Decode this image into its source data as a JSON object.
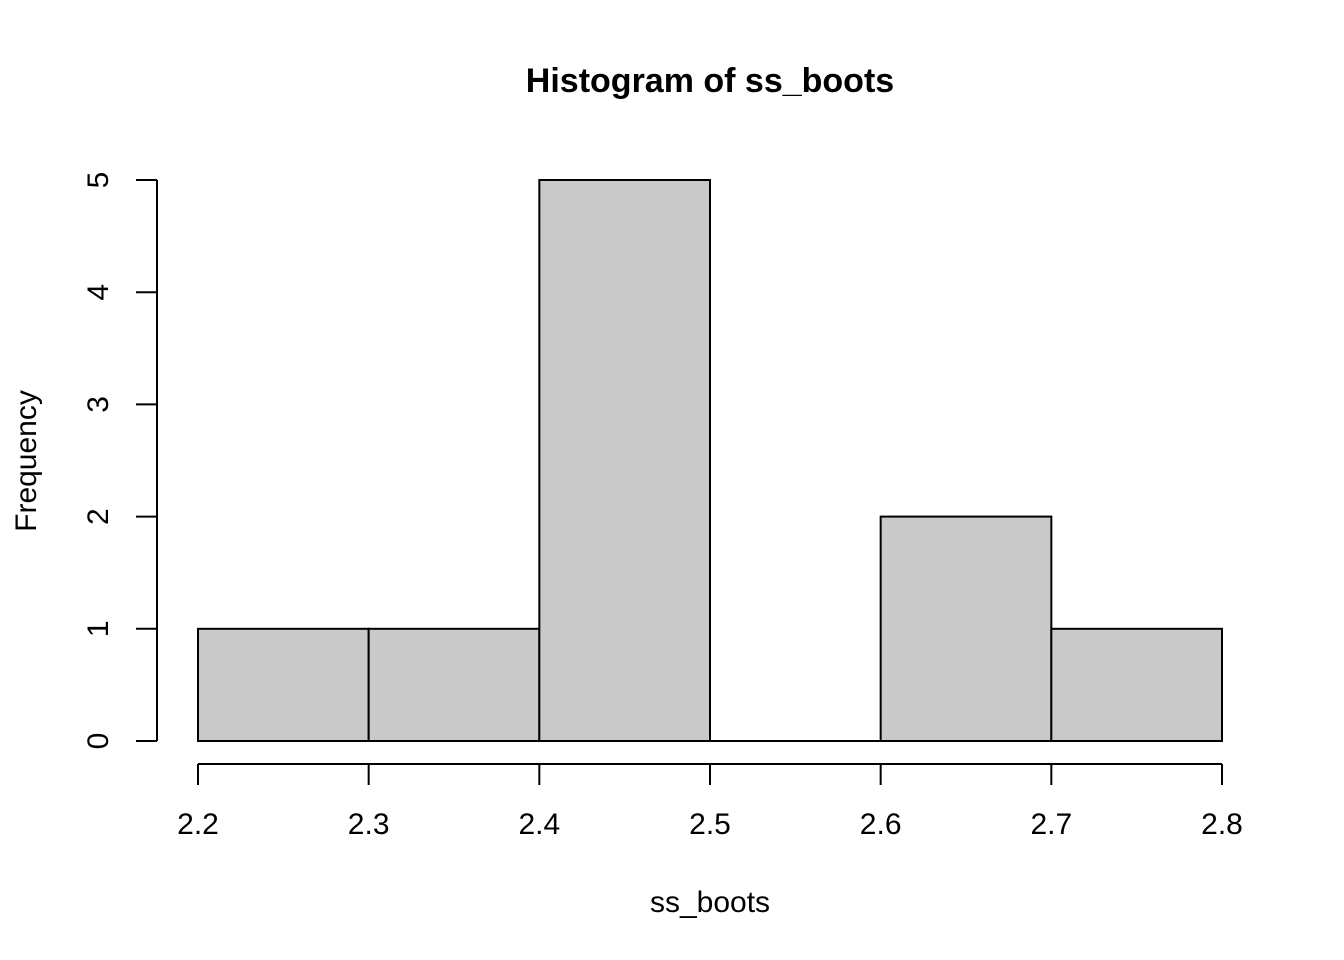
{
  "chart_data": {
    "type": "bar",
    "subtype": "histogram",
    "title": "Histogram of ss_boots",
    "xlabel": "ss_boots",
    "ylabel": "Frequency",
    "bins": [
      {
        "start": 2.2,
        "end": 2.3,
        "count": 1
      },
      {
        "start": 2.3,
        "end": 2.4,
        "count": 1
      },
      {
        "start": 2.4,
        "end": 2.5,
        "count": 5
      },
      {
        "start": 2.5,
        "end": 2.6,
        "count": 0
      },
      {
        "start": 2.6,
        "end": 2.7,
        "count": 2
      },
      {
        "start": 2.7,
        "end": 2.8,
        "count": 1
      }
    ],
    "xlim": [
      2.2,
      2.8
    ],
    "ylim": [
      0,
      5
    ],
    "x_ticks": [
      "2.2",
      "2.3",
      "2.4",
      "2.5",
      "2.6",
      "2.7",
      "2.8"
    ],
    "y_ticks": [
      "0",
      "1",
      "2",
      "3",
      "4",
      "5"
    ],
    "grid": false,
    "bar_color": "#c9c9c9",
    "bar_edge_color": "#000000"
  }
}
